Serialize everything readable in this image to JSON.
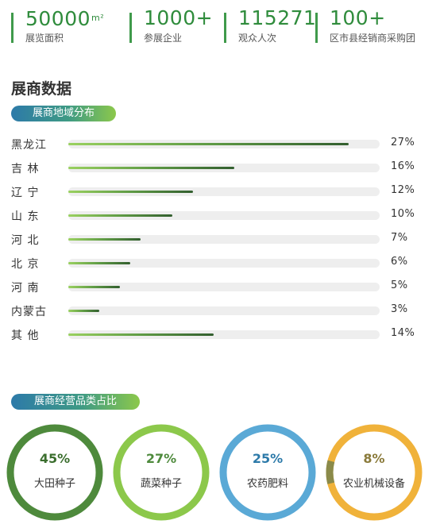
{
  "stats": [
    {
      "number": "50000",
      "unit": "m²",
      "label": "展览面积"
    },
    {
      "number": "1000+",
      "unit": "",
      "label": "参展企业"
    },
    {
      "number": "115271",
      "unit": "",
      "label": "观众人次"
    },
    {
      "number": "100+",
      "unit": "",
      "label": "区市县经销商采购团"
    }
  ],
  "section_title": "展商数据",
  "region_pill": "展商地域分布",
  "category_pill": "展商经营品类占比",
  "colors": {
    "accent_green": "#2f8c3c",
    "pill_blue": "#2d7aa9",
    "pill_green": "#8cc84b",
    "track": "#eeeeee"
  },
  "chart_data": [
    {
      "type": "bar",
      "orientation": "horizontal",
      "categories": [
        "黑龙江",
        "吉 林",
        "辽 宁",
        "山 东",
        "河 北",
        "北 京",
        "河 南",
        "内蒙古",
        "其 他"
      ],
      "values": [
        27,
        16,
        12,
        10,
        7,
        6,
        5,
        3,
        14
      ],
      "labels": [
        "27%",
        "16%",
        "12%",
        "10%",
        "7%",
        "6%",
        "5%",
        "3%",
        "14%"
      ],
      "unit": "%"
    },
    {
      "type": "pie",
      "style": "donut",
      "items": [
        {
          "label": "大田种子",
          "value": 45,
          "text": "45%",
          "color": "#4e8a3c",
          "text_color": "#3b6e2e"
        },
        {
          "label": "蔬菜种子",
          "value": 27,
          "text": "27%",
          "color": "#8cc84b",
          "text_color": "#4e8a3c"
        },
        {
          "label": "农药肥料",
          "value": 25,
          "text": "25%",
          "color": "#5aa9d6",
          "text_color": "#2d7aa9"
        },
        {
          "label": "农业机械设备",
          "value": 8,
          "text": "8%",
          "color": "#f0b23a",
          "text_color": "#8a7a3a",
          "secondary_color": "#8a8a4a"
        }
      ]
    }
  ]
}
